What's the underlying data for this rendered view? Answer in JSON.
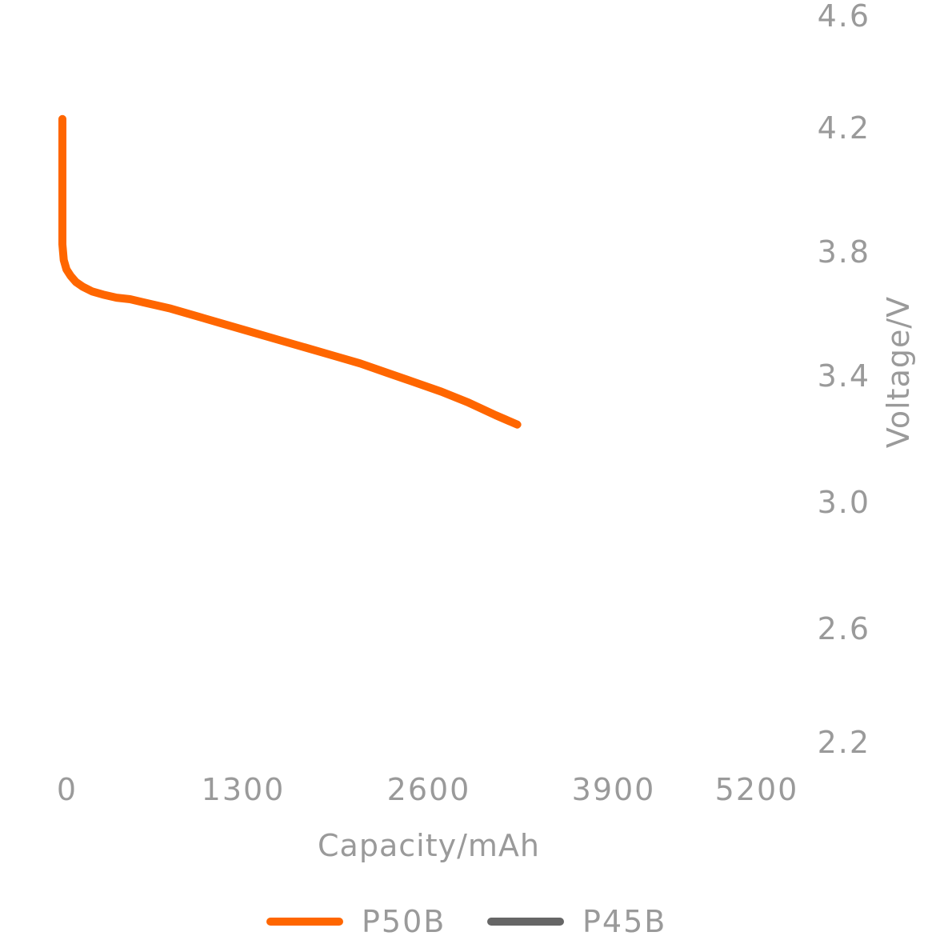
{
  "chart_data": {
    "type": "line",
    "title": "",
    "xlabel": "Capacity/mAh",
    "ylabel": "Voltage/V",
    "xlim": [
      0,
      5200
    ],
    "ylim": [
      2.2,
      4.6
    ],
    "x_ticks": [
      "0",
      "1300",
      "2600",
      "3900",
      "5200"
    ],
    "y_ticks": [
      "4.6",
      "4.2",
      "3.8",
      "3.4",
      "3.0",
      "2.6",
      "2.2"
    ],
    "grid": false,
    "legend_position": "bottom-center",
    "series": [
      {
        "name": "P50B",
        "color": "#ff6600",
        "x": [
          0,
          0,
          0,
          10,
          30,
          60,
          100,
          150,
          220,
          300,
          400,
          500,
          600,
          800,
          1000,
          1200,
          1400,
          1600,
          1800,
          2000,
          2200,
          2400,
          2600,
          2800,
          3000,
          3200,
          3360
        ],
        "y": [
          4.22,
          3.95,
          3.82,
          3.77,
          3.74,
          3.72,
          3.7,
          3.685,
          3.67,
          3.66,
          3.65,
          3.645,
          3.635,
          3.615,
          3.59,
          3.565,
          3.54,
          3.515,
          3.49,
          3.465,
          3.44,
          3.41,
          3.38,
          3.35,
          3.315,
          3.275,
          3.245
        ]
      },
      {
        "name": "P45B",
        "color": "#666666",
        "x": [],
        "y": []
      }
    ]
  }
}
